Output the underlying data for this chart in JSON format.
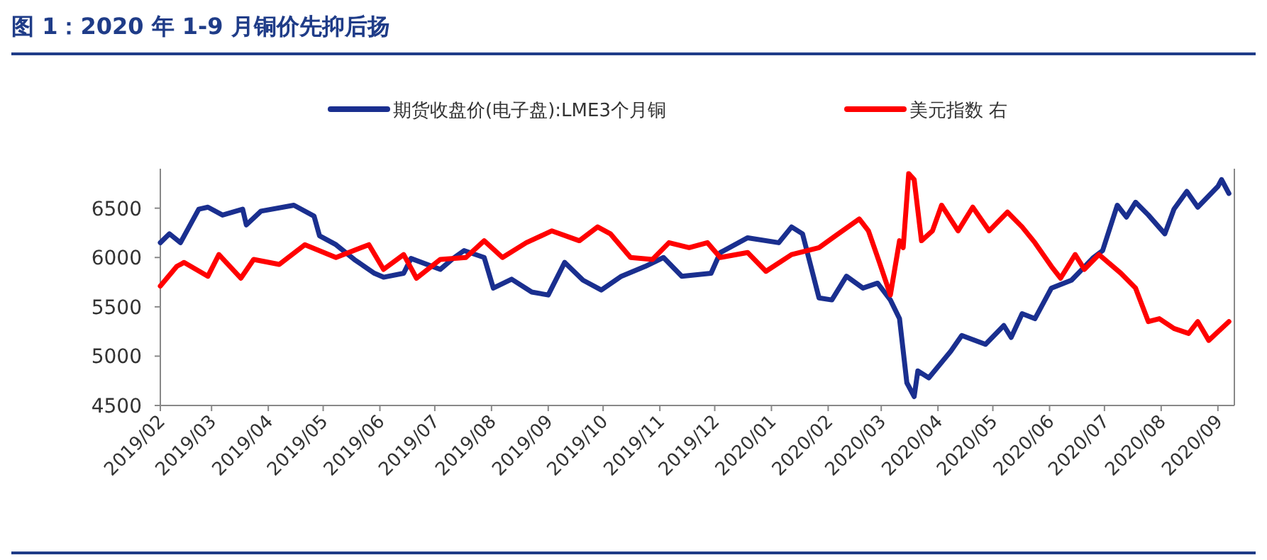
{
  "chart_data": {
    "type": "line",
    "title": "图 1：2020 年 1-9 月铜价先抑后扬",
    "xlim": [
      "2019-02-01",
      "2020-09-10"
    ],
    "ylim": [
      4500,
      6900
    ],
    "yticks": [
      4500,
      5000,
      5500,
      6000,
      6500
    ],
    "xticks": [
      {
        "value": "2019-02-01",
        "label": "2019/02"
      },
      {
        "value": "2019-03-01",
        "label": "2019/03"
      },
      {
        "value": "2019-04-01",
        "label": "2019/04"
      },
      {
        "value": "2019-05-01",
        "label": "2019/05"
      },
      {
        "value": "2019-06-01",
        "label": "2019/06"
      },
      {
        "value": "2019-07-01",
        "label": "2019/07"
      },
      {
        "value": "2019-08-01",
        "label": "2019/08"
      },
      {
        "value": "2019-09-01",
        "label": "2019/09"
      },
      {
        "value": "2019-10-01",
        "label": "2019/10"
      },
      {
        "value": "2019-11-01",
        "label": "2019/11"
      },
      {
        "value": "2019-12-01",
        "label": "2019/12"
      },
      {
        "value": "2020-01-01",
        "label": "2020/01"
      },
      {
        "value": "2020-02-01",
        "label": "2020/02"
      },
      {
        "value": "2020-03-01",
        "label": "2020/03"
      },
      {
        "value": "2020-04-01",
        "label": "2020/04"
      },
      {
        "value": "2020-05-01",
        "label": "2020/05"
      },
      {
        "value": "2020-06-01",
        "label": "2020/06"
      },
      {
        "value": "2020-07-01",
        "label": "2020/07"
      },
      {
        "value": "2020-08-01",
        "label": "2020/08"
      },
      {
        "value": "2020-09-01",
        "label": "2020/09"
      }
    ],
    "grid": false,
    "legend": "top",
    "line_style": "solid",
    "marker": "none",
    "series": [
      {
        "name": "期货收盘价(电子盘):LME3个月铜",
        "color": "#1a2f8f",
        "x": [
          "2019-02-01",
          "2019-02-06",
          "2019-02-12",
          "2019-02-22",
          "2019-02-27",
          "2019-03-07",
          "2019-03-18",
          "2019-03-20",
          "2019-03-28",
          "2019-04-15",
          "2019-04-26",
          "2019-04-29",
          "2019-05-08",
          "2019-05-18",
          "2019-05-29",
          "2019-06-03",
          "2019-06-14",
          "2019-06-18",
          "2019-07-04",
          "2019-07-11",
          "2019-07-17",
          "2019-07-28",
          "2019-08-02",
          "2019-08-12",
          "2019-08-23",
          "2019-09-01",
          "2019-09-10",
          "2019-09-20",
          "2019-09-30",
          "2019-10-11",
          "2019-10-24",
          "2019-11-03",
          "2019-11-13",
          "2019-11-29",
          "2019-12-04",
          "2019-12-19",
          "2020-01-05",
          "2020-01-12",
          "2020-01-18",
          "2020-01-27",
          "2020-02-03",
          "2020-02-11",
          "2020-02-20",
          "2020-02-28",
          "2020-03-06",
          "2020-03-11",
          "2020-03-15",
          "2020-03-19",
          "2020-03-21",
          "2020-03-27",
          "2020-04-08",
          "2020-04-14",
          "2020-04-27",
          "2020-05-07",
          "2020-05-11",
          "2020-05-17",
          "2020-05-24",
          "2020-06-02",
          "2020-06-13",
          "2020-06-25",
          "2020-06-30",
          "2020-07-08",
          "2020-07-13",
          "2020-07-18",
          "2020-07-25",
          "2020-08-03",
          "2020-08-08",
          "2020-08-15",
          "2020-08-21",
          "2020-09-01",
          "2020-09-03",
          "2020-09-07"
        ],
        "values": [
          6150,
          6240,
          6150,
          6490,
          6510,
          6430,
          6490,
          6330,
          6470,
          6530,
          6420,
          6220,
          6130,
          5980,
          5840,
          5800,
          5840,
          5990,
          5880,
          5990,
          6070,
          6000,
          5690,
          5780,
          5650,
          5620,
          5950,
          5770,
          5670,
          5810,
          5910,
          6000,
          5810,
          5840,
          6050,
          6200,
          6150,
          6310,
          6240,
          5590,
          5570,
          5810,
          5690,
          5740,
          5570,
          5380,
          4730,
          4590,
          4850,
          4780,
          5050,
          5210,
          5120,
          5310,
          5190,
          5430,
          5380,
          5690,
          5770,
          6000,
          6070,
          6530,
          6410,
          6560,
          6430,
          6240,
          6490,
          6670,
          6510,
          6720,
          6790,
          6650
        ]
      },
      {
        "name": "美元指数 右",
        "color": "#ff0000",
        "x": [
          "2019-02-01",
          "2019-02-10",
          "2019-02-14",
          "2019-02-27",
          "2019-03-05",
          "2019-03-17",
          "2019-03-24",
          "2019-04-07",
          "2019-04-21",
          "2019-05-08",
          "2019-05-26",
          "2019-06-03",
          "2019-06-14",
          "2019-06-21",
          "2019-07-04",
          "2019-07-18",
          "2019-07-28",
          "2019-08-07",
          "2019-08-20",
          "2019-09-03",
          "2019-09-18",
          "2019-09-28",
          "2019-10-05",
          "2019-10-16",
          "2019-10-28",
          "2019-11-06",
          "2019-11-17",
          "2019-11-27",
          "2019-12-04",
          "2019-12-19",
          "2019-12-29",
          "2020-01-12",
          "2020-01-27",
          "2020-02-05",
          "2020-02-18",
          "2020-02-23",
          "2020-02-29",
          "2020-03-06",
          "2020-03-11",
          "2020-03-13",
          "2020-03-16",
          "2020-03-19",
          "2020-03-23",
          "2020-03-29",
          "2020-04-03",
          "2020-04-12",
          "2020-04-20",
          "2020-04-29",
          "2020-05-09",
          "2020-05-17",
          "2020-05-24",
          "2020-06-02",
          "2020-06-07",
          "2020-06-15",
          "2020-06-20",
          "2020-06-28",
          "2020-07-10",
          "2020-07-18",
          "2020-07-25",
          "2020-07-31",
          "2020-08-08",
          "2020-08-16",
          "2020-08-21",
          "2020-08-27",
          "2020-09-07"
        ],
        "values": [
          5710,
          5910,
          5950,
          5810,
          6030,
          5790,
          5980,
          5930,
          6130,
          6000,
          6130,
          5880,
          6030,
          5790,
          5980,
          6000,
          6170,
          6000,
          6150,
          6270,
          6170,
          6310,
          6240,
          6000,
          5980,
          6150,
          6100,
          6150,
          6000,
          6050,
          5860,
          6030,
          6100,
          6220,
          6390,
          6270,
          5950,
          5620,
          6170,
          6100,
          6850,
          6790,
          6170,
          6270,
          6530,
          6270,
          6510,
          6270,
          6460,
          6310,
          6150,
          5910,
          5790,
          6030,
          5880,
          6030,
          5840,
          5690,
          5350,
          5380,
          5280,
          5230,
          5350,
          5160,
          5350
        ]
      }
    ]
  }
}
